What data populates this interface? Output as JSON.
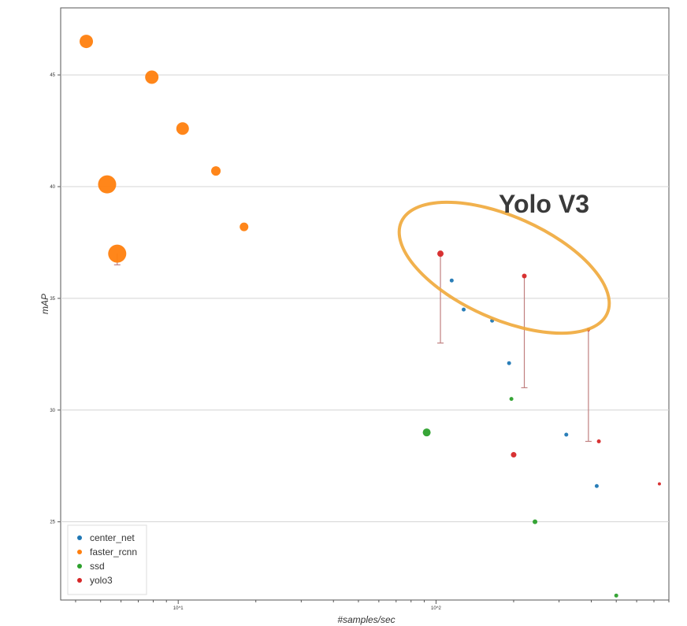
{
  "chart_data": {
    "type": "scatter",
    "xlabel": "#samples/sec",
    "ylabel": "mAP",
    "x_scale": "log",
    "xlim": [
      3.5,
      800
    ],
    "ylim": [
      21.5,
      48
    ],
    "x_ticks": [
      {
        "value": 10,
        "label": "10^1"
      },
      {
        "value": 100,
        "label": "10^2"
      }
    ],
    "y_ticks": [
      25,
      30,
      35,
      40,
      45
    ],
    "grid": "horizontal",
    "legend_position": "bottom-left",
    "series": [
      {
        "name": "center_net",
        "color": "#1f77b4",
        "points": [
          {
            "x": 115,
            "y": 35.8,
            "size": 2.5
          },
          {
            "x": 128,
            "y": 34.5,
            "size": 2.5
          },
          {
            "x": 165,
            "y": 34.0,
            "size": 2.5
          },
          {
            "x": 192,
            "y": 32.1,
            "size": 2.5
          },
          {
            "x": 320,
            "y": 28.9,
            "size": 2.5
          },
          {
            "x": 420,
            "y": 26.6,
            "size": 2.5
          }
        ]
      },
      {
        "name": "faster_rcnn",
        "color": "#ff7f0e",
        "points": [
          {
            "x": 4.4,
            "y": 46.5,
            "size": 8.5
          },
          {
            "x": 5.3,
            "y": 40.1,
            "size": 11.5
          },
          {
            "x": 5.8,
            "y": 37.0,
            "size": 11.5,
            "err_low": 36.5,
            "err_high": 37.0
          },
          {
            "x": 7.9,
            "y": 44.9,
            "size": 8.5
          },
          {
            "x": 10.4,
            "y": 42.6,
            "size": 8.0
          },
          {
            "x": 14.0,
            "y": 40.7,
            "size": 6.0
          },
          {
            "x": 18.0,
            "y": 38.2,
            "size": 5.5
          }
        ]
      },
      {
        "name": "ssd",
        "color": "#2ca02c",
        "points": [
          {
            "x": 92,
            "y": 29.0,
            "size": 5.0
          },
          {
            "x": 196,
            "y": 30.5,
            "size": 2.5
          },
          {
            "x": 242,
            "y": 25.0,
            "size": 3.0
          },
          {
            "x": 500,
            "y": 21.7,
            "size": 2.5
          }
        ]
      },
      {
        "name": "yolo3",
        "color": "#d62728",
        "points": [
          {
            "x": 104,
            "y": 37.0,
            "size": 4.0,
            "err_low": 33.0,
            "err_high": 37.0
          },
          {
            "x": 200,
            "y": 28.0,
            "size": 3.5
          },
          {
            "x": 220,
            "y": 36.0,
            "size": 3.0,
            "err_low": 31.0,
            "err_high": 36.0
          },
          {
            "x": 390,
            "y": 33.6,
            "size": 2.2,
            "err_low": 28.6,
            "err_high": 33.6
          },
          {
            "x": 428,
            "y": 28.6,
            "size": 2.5
          },
          {
            "x": 735,
            "y": 26.7,
            "size": 2.0
          }
        ]
      }
    ],
    "annotation": {
      "text": "Yolo V3",
      "color": "#f0a93a"
    }
  }
}
